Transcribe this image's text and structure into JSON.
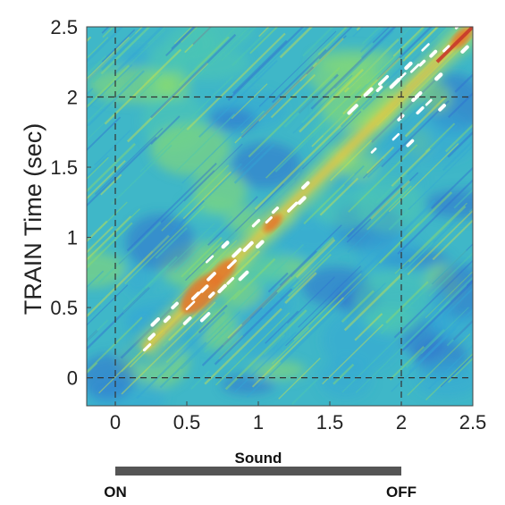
{
  "chart_data": {
    "type": "heatmap",
    "title": "",
    "xlabel": "",
    "ylabel": "TRAIN  Time (sec)",
    "xlim": [
      -0.2,
      2.5
    ],
    "ylim": [
      -0.2,
      2.5
    ],
    "xticks": [
      "0",
      "0.5",
      "1",
      "1.5",
      "2",
      "2.5"
    ],
    "yticks": [
      "0",
      "0.5",
      "1",
      "1.5",
      "2",
      "2.5"
    ],
    "reference_lines": {
      "x": [
        0,
        2
      ],
      "y": [
        0,
        2
      ],
      "style": "dashed"
    },
    "colormap": [
      "#2f6fd0",
      "#33a7d6",
      "#4fc8b0",
      "#8fdc6a",
      "#cfe34a",
      "#f0c23a",
      "#e4762b",
      "#c9382a"
    ],
    "diagonal_peak": {
      "from": 0.2,
      "to": 2.5
    },
    "significant_contour_color": "#ffffff"
  },
  "sound_bar": {
    "label": "Sound",
    "on_label": "ON",
    "off_label": "OFF",
    "start": 0,
    "end": 2,
    "color": "#555555"
  }
}
